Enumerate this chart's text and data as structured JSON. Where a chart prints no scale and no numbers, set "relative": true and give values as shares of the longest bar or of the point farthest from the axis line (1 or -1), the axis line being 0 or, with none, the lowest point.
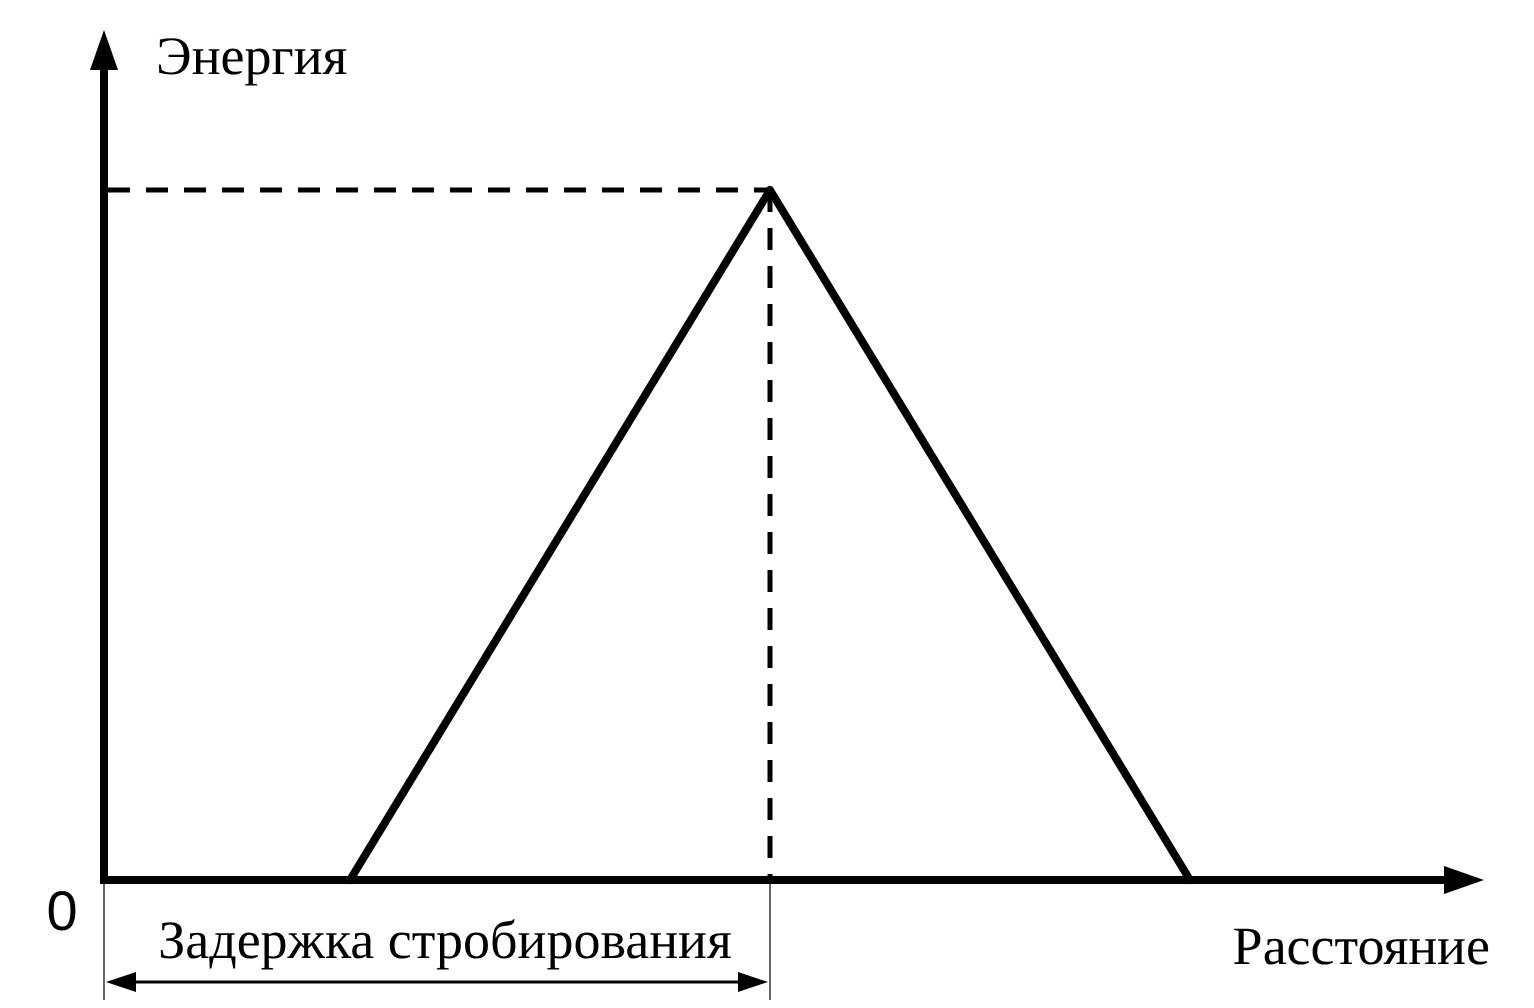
{
  "chart_data": {
    "type": "line",
    "xlabel": "Расстояние",
    "ylabel": "Энергия",
    "categories": [
      null,
      null,
      null
    ],
    "values": [
      0,
      1,
      0
    ],
    "color": "#000000",
    "relative": true,
    "ref_lines": [
      {
        "axis": "y",
        "value": 1,
        "line_style": "dashed",
        "color": "#000000"
      }
    ],
    "annotations": [
      "0",
      "Задержка стробирования"
    ]
  }
}
